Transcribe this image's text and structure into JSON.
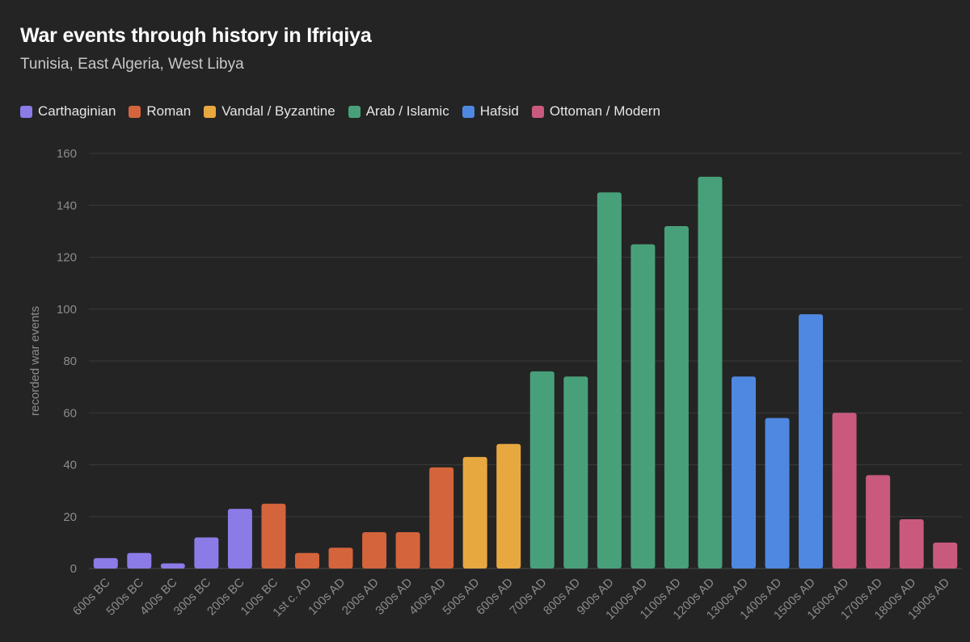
{
  "chart_data": {
    "type": "bar",
    "title": "War events through history in Ifriqiya",
    "subtitle": "Tunisia, East Algeria, West Libya",
    "xlabel": "",
    "ylabel": "recorded war events",
    "ylim": [
      0,
      160
    ],
    "yticks": [
      0,
      20,
      40,
      60,
      80,
      100,
      120,
      140,
      160
    ],
    "grid": true,
    "legend_position": "top-left",
    "legend": [
      {
        "label": "Carthaginian",
        "color": "#8b7be6"
      },
      {
        "label": "Roman",
        "color": "#d4643c"
      },
      {
        "label": "Vandal / Byzantine",
        "color": "#e8a840"
      },
      {
        "label": "Arab / Islamic",
        "color": "#48a07a"
      },
      {
        "label": "Hafsid",
        "color": "#4f88e0"
      },
      {
        "label": "Ottoman / Modern",
        "color": "#c95a7e"
      }
    ],
    "categories": [
      "600s BC",
      "500s BC",
      "400s BC",
      "300s BC",
      "200s BC",
      "100s BC",
      "1st c. AD",
      "100s AD",
      "200s AD",
      "300s AD",
      "400s AD",
      "500s AD",
      "600s AD",
      "700s AD",
      "800s AD",
      "900s AD",
      "1000s AD",
      "1100s AD",
      "1200s AD",
      "1300s AD",
      "1400s AD",
      "1500s AD",
      "1600s AD",
      "1700s AD",
      "1800s AD",
      "1900s AD"
    ],
    "values": [
      4,
      6,
      2,
      12,
      23,
      25,
      6,
      8,
      14,
      14,
      39,
      43,
      48,
      76,
      74,
      145,
      125,
      132,
      151,
      74,
      58,
      98,
      60,
      36,
      19,
      10
    ],
    "groups": [
      0,
      0,
      0,
      0,
      0,
      1,
      1,
      1,
      1,
      1,
      1,
      2,
      2,
      3,
      3,
      3,
      3,
      3,
      3,
      4,
      4,
      4,
      5,
      5,
      5,
      5
    ]
  }
}
